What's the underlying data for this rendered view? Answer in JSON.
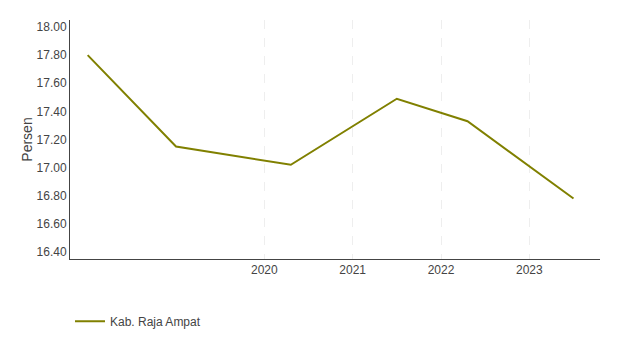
{
  "chart_data": {
    "type": "line",
    "x": [
      2018,
      2019,
      2020.3,
      2021.5,
      2022.3,
      2023.5
    ],
    "series": [
      {
        "name": "Kab. Raja Ampat",
        "color": "#808000",
        "values": [
          17.8,
          17.15,
          17.02,
          17.49,
          17.33,
          16.78
        ]
      }
    ],
    "ylabel": "Persen",
    "xlim": [
      2017.8,
      2023.8
    ],
    "xticks": [
      2020,
      2021,
      2022,
      2023
    ],
    "ylim": [
      16.35,
      18.05
    ],
    "yticks": [
      {
        "value": 16.4,
        "label": "16.40"
      },
      {
        "value": 16.6,
        "label": "16.60"
      },
      {
        "value": 16.8,
        "label": "16.80"
      },
      {
        "value": 17.0,
        "label": "17.00"
      },
      {
        "value": 17.2,
        "label": "17.20"
      },
      {
        "value": 17.4,
        "label": "17.40"
      },
      {
        "value": 17.6,
        "label": "17.60"
      },
      {
        "value": 17.8,
        "label": "17.80"
      },
      {
        "value": 18.0,
        "label": "18.00"
      }
    ],
    "grid": "x",
    "legend": "lower left"
  }
}
